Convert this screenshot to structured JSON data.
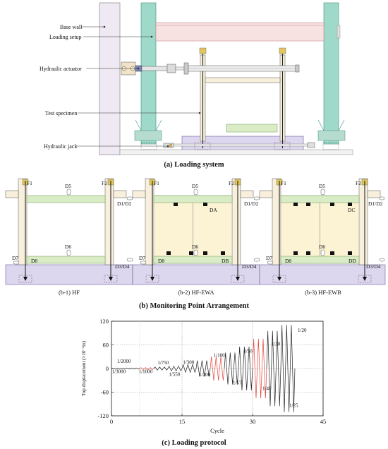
{
  "panel_a": {
    "labels": {
      "base_wall": "Base wall",
      "loading_setup": "Loading setup",
      "hydraulic_actuator": "Hydraulic actuator",
      "test_specimen": "Test specimen",
      "hydraulic_jack": "Hydraulic jack"
    },
    "caption": "(a) Loading system"
  },
  "panel_b": {
    "caption": "(b) Monitoring Point Arrangement",
    "subpanels": [
      {
        "caption": "(b-1) HF",
        "f1": "F1",
        "f2": "F2",
        "d5": "D5",
        "d6": "D6",
        "d7": "D7",
        "d8": "D8",
        "d12": "D1/D2",
        "d34": "D3/D4"
      },
      {
        "caption": "(b-2) HF-EWA",
        "f1": "F1",
        "f2": "F2",
        "d5": "D5",
        "d6": "D6",
        "d7": "D7",
        "d8": "D8",
        "d12": "D1/D2",
        "d34": "D3/D4",
        "top": "DA",
        "bot": "DB"
      },
      {
        "caption": "(b-3) HF-EWB",
        "f1": "F1",
        "f2": "F2",
        "d5": "D5",
        "d6": "D6",
        "d7": "D7",
        "d8": "D8",
        "d12": "D1/D2",
        "d34": "D3/D4",
        "top": "DC",
        "bot": "DD"
      }
    ]
  },
  "panel_c": {
    "caption": "(c) Loading protocol",
    "colors": {
      "cycle": "#222222",
      "highlight": "#e0443a",
      "accent": "#c9302c"
    }
  },
  "chart_data": {
    "type": "line",
    "xlabel": "Cycle",
    "ylabel": "Top displacement (×10⁻³m)",
    "xlim": [
      0,
      45
    ],
    "ylim": [
      -120,
      120
    ],
    "xticks": [
      0,
      15,
      30,
      45
    ],
    "yticks": [
      120,
      60,
      0,
      -60,
      -120
    ],
    "grid": "dotted",
    "steps": [
      {
        "cycles": 3,
        "amplitude": 0.5
      },
      {
        "cycles": 3,
        "amplitude": 1.5
      },
      {
        "cycles": 3,
        "amplitude": 2.5
      },
      {
        "cycles": 3,
        "amplitude": 4
      },
      {
        "cycles": 3,
        "amplitude": 6
      },
      {
        "cycles": 3,
        "amplitude": 10
      },
      {
        "cycles": 3,
        "amplitude": 20
      },
      {
        "cycles": 3,
        "amplitude": 30
      },
      {
        "cycles": 3,
        "amplitude": 40
      },
      {
        "cycles": 3,
        "amplitude": 55
      },
      {
        "cycles": 3,
        "amplitude": 75
      },
      {
        "cycles": 3,
        "amplitude": 95
      },
      {
        "cycles": 3,
        "amplitude": 110
      }
    ],
    "highlight_steps": [
      2,
      7,
      10
    ],
    "ratio_labels": [
      {
        "text": "1/3000",
        "x": 0.1,
        "y": -12
      },
      {
        "text": "1/2000",
        "x": 1.2,
        "y": 14
      },
      {
        "text": "1/1000",
        "x": 5.8,
        "y": -12
      },
      {
        "text": "1/750",
        "x": 9.8,
        "y": 11
      },
      {
        "text": "1/550",
        "x": 12.2,
        "y": -19
      },
      {
        "text": "1/300",
        "x": 15.2,
        "y": 12
      },
      {
        "text": "1/200",
        "x": 18.6,
        "y": -20
      },
      {
        "text": "1/100",
        "x": 21.7,
        "y": 30
      },
      {
        "text": "1/67",
        "x": 25.8,
        "y": -40
      },
      {
        "text": "1/50",
        "x": 28.1,
        "y": 40
      },
      {
        "text": "1/40",
        "x": 32.1,
        "y": -55
      },
      {
        "text": "1/30",
        "x": 34.0,
        "y": 58
      },
      {
        "text": "1/25",
        "x": 37.8,
        "y": -98
      },
      {
        "text": "1/20",
        "x": 39.6,
        "y": 93
      }
    ]
  }
}
